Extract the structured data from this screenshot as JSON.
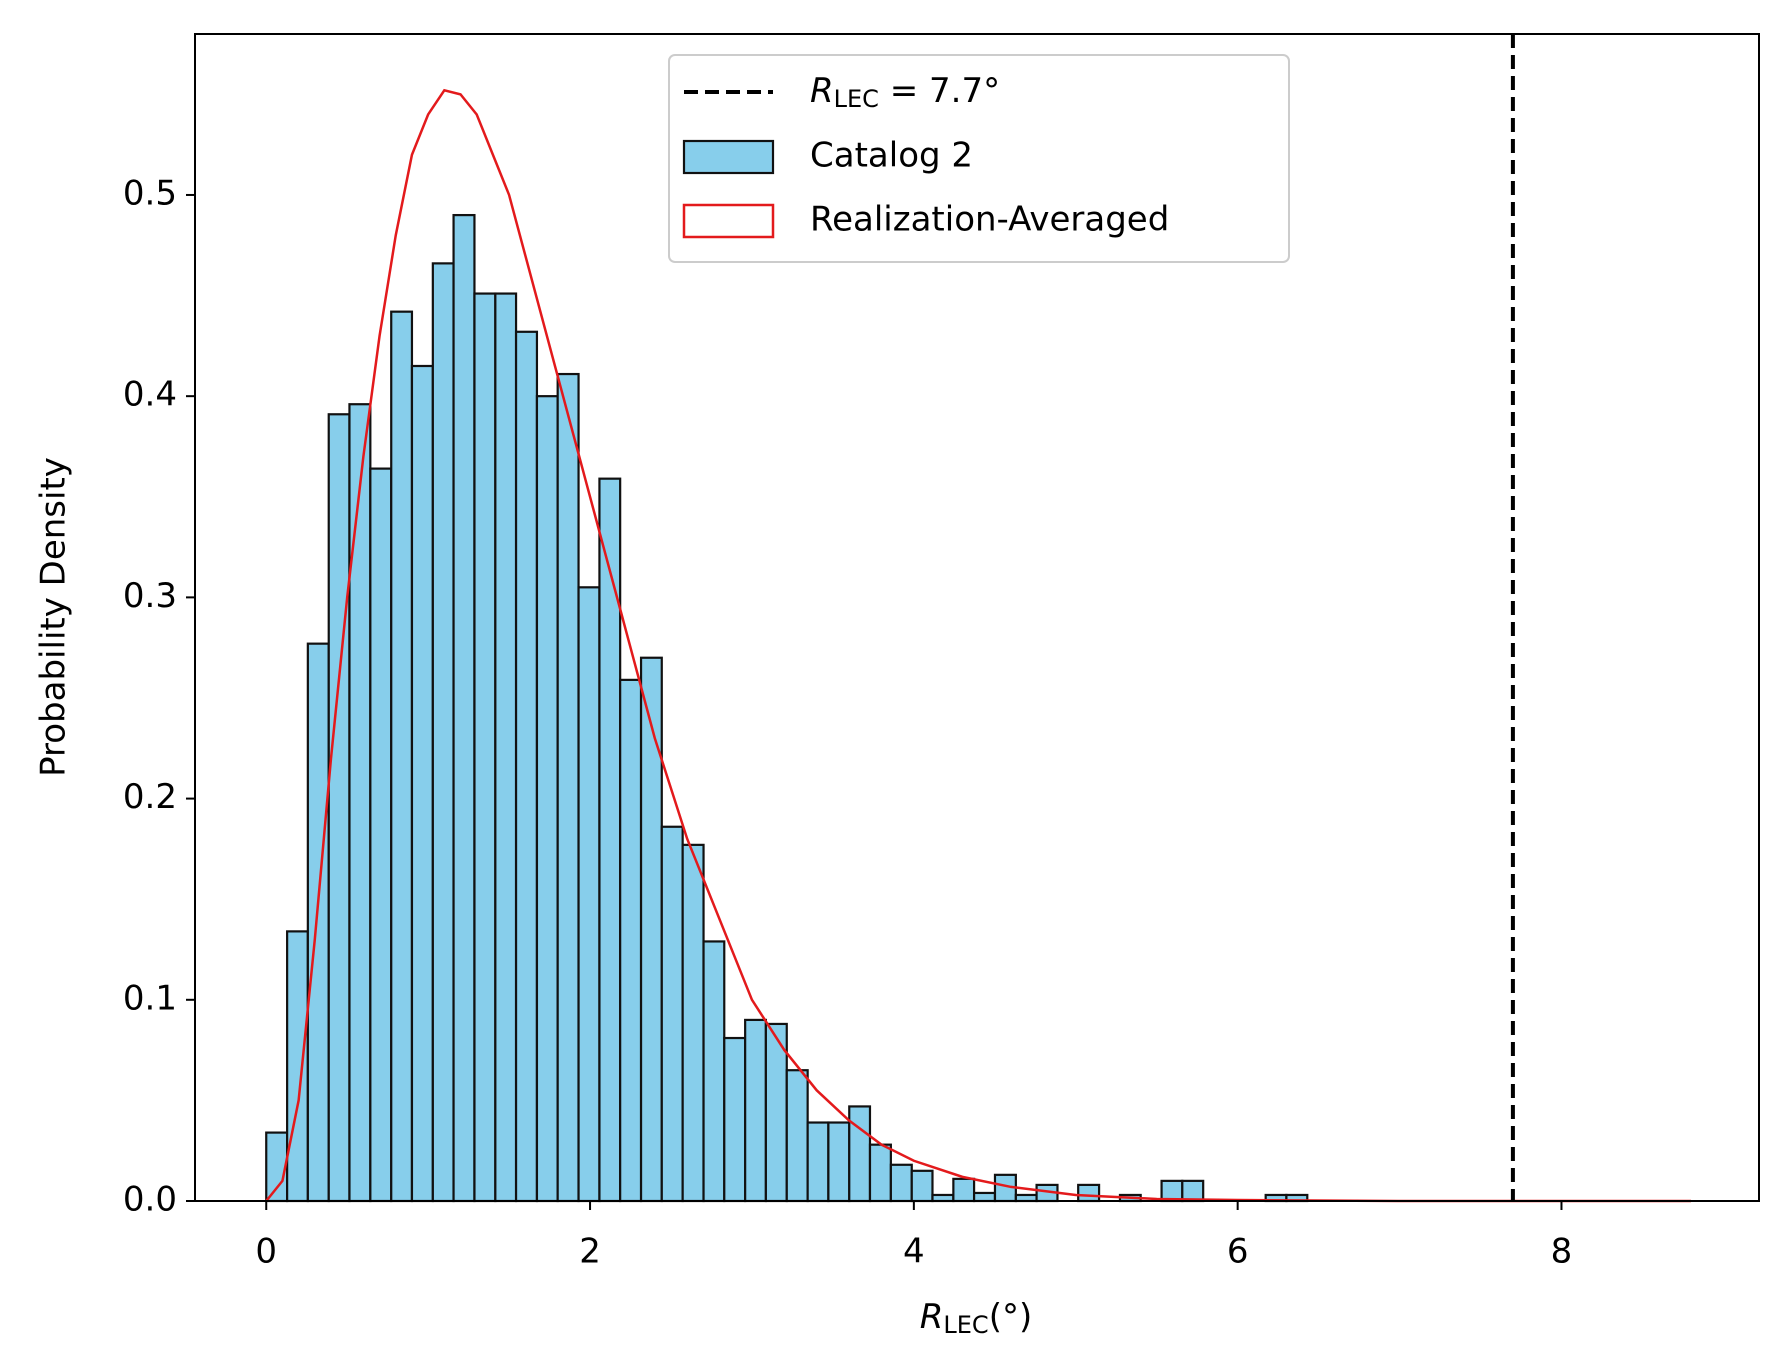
{
  "chart_data": {
    "type": "histogram",
    "ylabel": "Probability Density",
    "xlabel_parts": [
      "R",
      "LEC",
      "(°)"
    ],
    "xlim": [
      -0.44,
      9.22
    ],
    "ylim": [
      0,
      0.58
    ],
    "xticks": [
      0,
      2,
      4,
      6,
      8
    ],
    "yticks": [
      {
        "value": 0,
        "label": "0.0"
      },
      0.1,
      0.2,
      0.3,
      0.4,
      0.5
    ],
    "legend": "upper center",
    "bins": [
      0.0,
      0.129,
      0.257,
      0.386,
      0.514,
      0.643,
      0.772,
      0.9,
      1.029,
      1.157,
      1.286,
      1.415,
      1.543,
      1.672,
      1.8,
      1.929,
      2.058,
      2.186,
      2.315,
      2.443,
      2.572,
      2.701,
      2.829,
      2.958,
      3.086,
      3.215,
      3.344,
      3.472,
      3.601,
      3.729,
      3.858,
      3.987,
      4.115,
      4.244,
      4.372,
      4.501,
      4.63,
      4.758,
      4.887,
      5.015,
      5.144,
      5.273,
      5.401,
      5.53,
      5.658,
      5.787,
      5.916,
      6.044,
      6.173,
      6.301,
      6.43
    ],
    "series": [
      {
        "name": "Catalog 2",
        "color": "#87ceeb",
        "edgecolor": "#111111",
        "values": [
          0.034,
          0.134,
          0.277,
          0.391,
          0.396,
          0.364,
          0.442,
          0.415,
          0.466,
          0.49,
          0.451,
          0.451,
          0.432,
          0.4,
          0.411,
          0.305,
          0.359,
          0.259,
          0.27,
          0.186,
          0.177,
          0.129,
          0.081,
          0.09,
          0.088,
          0.065,
          0.039,
          0.039,
          0.047,
          0.028,
          0.018,
          0.015,
          0.003,
          0.011,
          0.004,
          0.013,
          0.003,
          0.008,
          0,
          0.008,
          0,
          0.003,
          0,
          0.01,
          0.01,
          0,
          0,
          0,
          0.003,
          0.003
        ]
      }
    ],
    "line": {
      "name": "Realization-Averaged",
      "color": "#e31a1c",
      "x": [
        0,
        0.1,
        0.2,
        0.3,
        0.4,
        0.5,
        0.6,
        0.7,
        0.8,
        0.9,
        1.0,
        1.1,
        1.2,
        1.3,
        1.4,
        1.5,
        1.6,
        1.7,
        1.8,
        1.9,
        2.0,
        2.1,
        2.2,
        2.3,
        2.4,
        2.5,
        2.6,
        2.7,
        2.8,
        2.9,
        3.0,
        3.2,
        3.4,
        3.6,
        3.8,
        4.0,
        4.3,
        4.6,
        5.0,
        5.5,
        6.0,
        7.0,
        8.8
      ],
      "values": [
        0,
        0.01,
        0.05,
        0.13,
        0.22,
        0.3,
        0.37,
        0.43,
        0.48,
        0.52,
        0.54,
        0.552,
        0.55,
        0.54,
        0.52,
        0.5,
        0.47,
        0.44,
        0.41,
        0.38,
        0.35,
        0.32,
        0.29,
        0.26,
        0.23,
        0.205,
        0.18,
        0.16,
        0.14,
        0.12,
        0.1,
        0.075,
        0.055,
        0.04,
        0.028,
        0.02,
        0.012,
        0.007,
        0.003,
        0.001,
        0.0005,
        0,
        0
      ]
    },
    "vline": {
      "x": 7.7,
      "color": "#000000",
      "label_parts": [
        "R",
        "LEC",
        " = 7.7°"
      ]
    }
  }
}
